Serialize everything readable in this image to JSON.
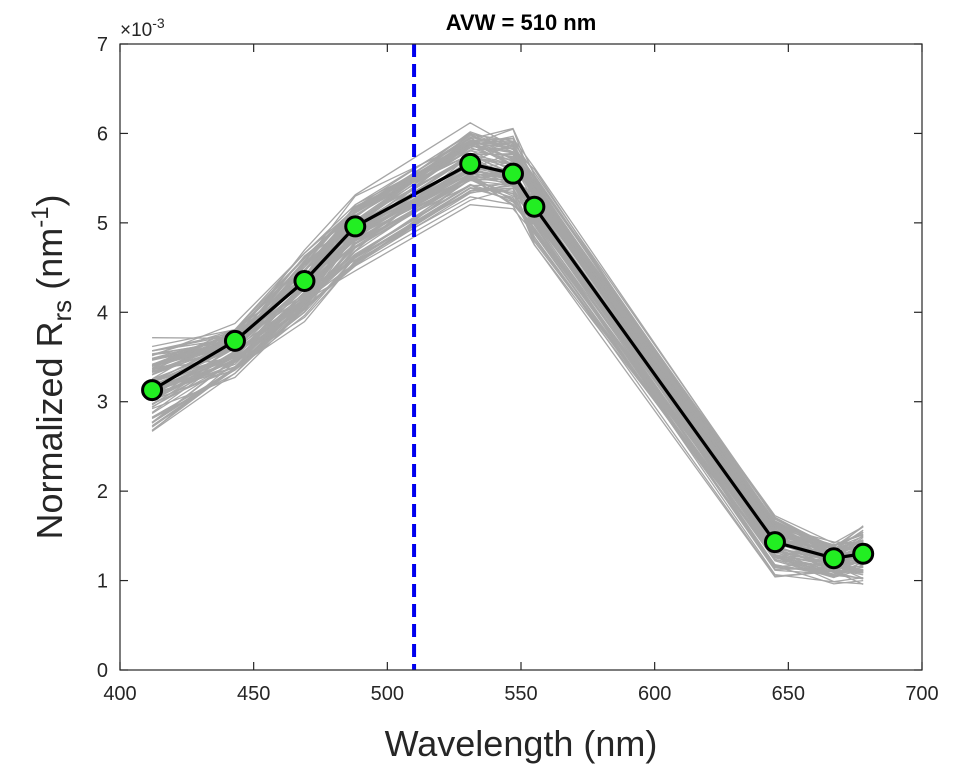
{
  "chart_data": {
    "type": "line",
    "title": "AVW = 510 nm",
    "xlabel": "Wavelength (nm)",
    "ylabel": {
      "prefix": "Normalized R",
      "subscript": "rs",
      "unit_open": "(nm",
      "superscript": "-1",
      "unit_close": ")"
    },
    "y_multiplier": {
      "base": "×10",
      "exponent": "-3"
    },
    "xlim": [
      400,
      700
    ],
    "ylim": [
      0,
      7
    ],
    "xticks": [
      "400",
      "450",
      "500",
      "550",
      "600",
      "650",
      "700"
    ],
    "yticks": [
      "0",
      "1",
      "2",
      "3",
      "4",
      "5",
      "6",
      "7"
    ],
    "grid": false,
    "x": [
      412,
      443,
      469,
      488,
      531,
      547,
      555,
      645,
      667,
      678
    ],
    "mean_series": {
      "values": [
        3.13,
        3.68,
        4.35,
        4.96,
        5.66,
        5.55,
        5.18,
        1.43,
        1.25,
        1.3
      ],
      "line_color": "#000000",
      "marker_fill": "#22ee22",
      "marker_edge": "#000000"
    },
    "individual_spectra": {
      "color": "#a6a6a6",
      "count": 90,
      "range_low": [
        2.5,
        3.1,
        3.7,
        4.3,
        5.1,
        5.0,
        4.6,
        0.9,
        0.85,
        0.85
      ],
      "range_high": [
        3.95,
        3.9,
        4.8,
        5.4,
        6.35,
        6.3,
        5.9,
        1.9,
        1.55,
        1.7
      ]
    },
    "avw_line": {
      "x": 510,
      "color": "#0000ee",
      "style": "dashed"
    }
  }
}
